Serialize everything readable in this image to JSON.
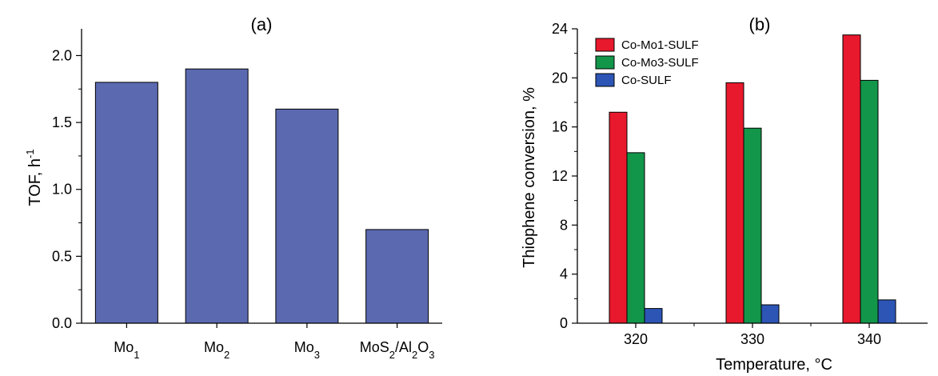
{
  "chart_data": [
    {
      "type": "bar",
      "title": "(a)",
      "xlabel": "",
      "ylabel": "TOF, h",
      "ylabel_superscript": "-1",
      "categories": [
        "Mo1",
        "Mo2",
        "Mo3",
        "MoS2/Al2O3"
      ],
      "values": [
        1.8,
        1.9,
        1.6,
        0.7
      ],
      "ylim": [
        0,
        2.2
      ],
      "yticks": [
        "0.0",
        "0.5",
        "1.0",
        "1.5",
        "2.0"
      ],
      "bar_color": "#5b69b0",
      "grid": false
    },
    {
      "type": "bar",
      "title": "(b)",
      "xlabel": "Temperature, °C",
      "ylabel": "Thiophene conversion, %",
      "categories": [
        "320",
        "330",
        "340"
      ],
      "series": [
        {
          "name": "Co-Mo1-SULF",
          "values": [
            17.2,
            19.6,
            23.5
          ],
          "color": "#e8192c"
        },
        {
          "name": "Co-Mo3-SULF",
          "values": [
            13.9,
            15.9,
            19.8
          ],
          "color": "#12964a"
        },
        {
          "name": "Co-SULF",
          "values": [
            1.2,
            1.5,
            1.9
          ],
          "color": "#2c55b5"
        }
      ],
      "ylim": [
        0,
        24
      ],
      "yticks": [
        "0",
        "4",
        "8",
        "12",
        "16",
        "20",
        "24"
      ],
      "legend_position": "top-left",
      "grid": false
    }
  ]
}
